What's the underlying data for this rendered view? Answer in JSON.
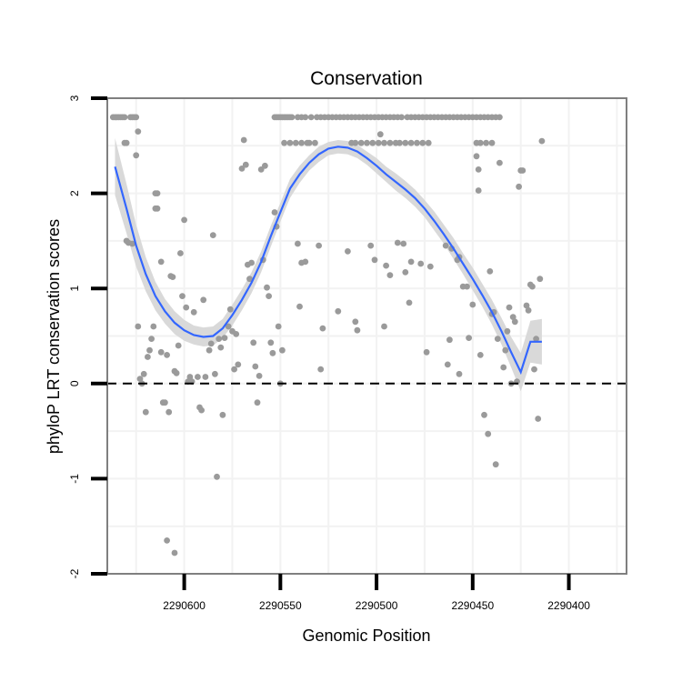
{
  "chart_data": {
    "type": "scatter",
    "title": "Conservation",
    "xlabel": "Genomic Position",
    "ylabel": "phyloP LRT conservation scores",
    "x_reversed": true,
    "xlim": [
      2290640,
      2290370
    ],
    "ylim": [
      -2,
      3
    ],
    "x_ticks": [
      2290600,
      2290550,
      2290500,
      2290450,
      2290400
    ],
    "x_tick_labels": [
      "2290600",
      "2290550",
      "2290500",
      "2290450",
      "2290400"
    ],
    "y_ticks": [
      -2,
      -1,
      0,
      1,
      2,
      3
    ],
    "y_tick_labels": [
      "-2",
      "-1",
      "0",
      "1",
      "2",
      "3"
    ],
    "reference_line": {
      "y": 0,
      "style": "dashed"
    },
    "colors": {
      "points": "#9a9a9a",
      "smooth": "#3366ff",
      "ribbon": "#d9d9d9",
      "grid": "#f2f2f2",
      "border": "#7f7f7f"
    },
    "points": [
      [
        2290637,
        2.8
      ],
      [
        2290636,
        2.8
      ],
      [
        2290635,
        2.8
      ],
      [
        2290634,
        2.8
      ],
      [
        2290633,
        2.8
      ],
      [
        2290632,
        2.8
      ],
      [
        2290631,
        2.8
      ],
      [
        2290628,
        2.8
      ],
      [
        2290627,
        2.8
      ],
      [
        2290626,
        2.8
      ],
      [
        2290625,
        2.8
      ],
      [
        2290631,
        2.53
      ],
      [
        2290630,
        2.53
      ],
      [
        2290624,
        2.65
      ],
      [
        2290625,
        2.4
      ],
      [
        2290630,
        1.5
      ],
      [
        2290629,
        1.48
      ],
      [
        2290627,
        1.47
      ],
      [
        2290624,
        0.6
      ],
      [
        2290623,
        0.05
      ],
      [
        2290622,
        0.0
      ],
      [
        2290621,
        0.1
      ],
      [
        2290620,
        -0.3
      ],
      [
        2290619,
        0.28
      ],
      [
        2290618,
        0.35
      ],
      [
        2290617,
        0.47
      ],
      [
        2290616,
        0.6
      ],
      [
        2290615,
        2.0
      ],
      [
        2290614,
        2.0
      ],
      [
        2290615,
        1.84
      ],
      [
        2290614,
        1.84
      ],
      [
        2290612,
        1.28
      ],
      [
        2290612,
        0.33
      ],
      [
        2290611,
        -0.2
      ],
      [
        2290610,
        -0.2
      ],
      [
        2290609,
        0.3
      ],
      [
        2290608,
        -0.3
      ],
      [
        2290607,
        1.13
      ],
      [
        2290606,
        1.12
      ],
      [
        2290605,
        0.13
      ],
      [
        2290604,
        0.11
      ],
      [
        2290609,
        -1.65
      ],
      [
        2290605,
        -1.78
      ],
      [
        2290603,
        0.4
      ],
      [
        2290602,
        1.37
      ],
      [
        2290601,
        0.92
      ],
      [
        2290600,
        1.72
      ],
      [
        2290599,
        0.8
      ],
      [
        2290598,
        0.02
      ],
      [
        2290597,
        0.07
      ],
      [
        2290596,
        0.02
      ],
      [
        2290595,
        0.75
      ],
      [
        2290593,
        0.07
      ],
      [
        2290592,
        -0.25
      ],
      [
        2290591,
        -0.28
      ],
      [
        2290590,
        0.88
      ],
      [
        2290589,
        0.07
      ],
      [
        2290587,
        0.35
      ],
      [
        2290586,
        0.42
      ],
      [
        2290585,
        1.56
      ],
      [
        2290584,
        0.1
      ],
      [
        2290583,
        -0.98
      ],
      [
        2290582,
        0.47
      ],
      [
        2290581,
        0.38
      ],
      [
        2290580,
        -0.33
      ],
      [
        2290579,
        0.48
      ],
      [
        2290577,
        0.6
      ],
      [
        2290576,
        0.78
      ],
      [
        2290575,
        0.55
      ],
      [
        2290574,
        0.15
      ],
      [
        2290573,
        0.52
      ],
      [
        2290572,
        0.2
      ],
      [
        2290570,
        2.26
      ],
      [
        2290569,
        2.56
      ],
      [
        2290568,
        2.3
      ],
      [
        2290567,
        1.25
      ],
      [
        2290566,
        1.1
      ],
      [
        2290565,
        1.27
      ],
      [
        2290564,
        0.43
      ],
      [
        2290563,
        0.18
      ],
      [
        2290562,
        -0.2
      ],
      [
        2290561,
        0.08
      ],
      [
        2290560,
        2.25
      ],
      [
        2290559,
        1.3
      ],
      [
        2290558,
        2.29
      ],
      [
        2290557,
        1.01
      ],
      [
        2290556,
        0.92
      ],
      [
        2290555,
        0.43
      ],
      [
        2290554,
        0.32
      ],
      [
        2290553,
        1.8
      ],
      [
        2290552,
        1.65
      ],
      [
        2290551,
        0.6
      ],
      [
        2290550,
        0.0
      ],
      [
        2290549,
        0.35
      ],
      [
        2290553,
        2.8
      ],
      [
        2290552,
        2.8
      ],
      [
        2290551,
        2.8
      ],
      [
        2290550,
        2.8
      ],
      [
        2290549,
        2.8
      ],
      [
        2290548,
        2.8
      ],
      [
        2290547,
        2.8
      ],
      [
        2290546,
        2.8
      ],
      [
        2290545,
        2.8
      ],
      [
        2290544,
        2.8
      ],
      [
        2290548,
        2.53
      ],
      [
        2290545,
        2.53
      ],
      [
        2290542,
        2.53
      ],
      [
        2290539,
        2.53
      ],
      [
        2290536,
        2.53
      ],
      [
        2290535,
        2.53
      ],
      [
        2290532,
        2.53
      ],
      [
        2290541,
        2.8
      ],
      [
        2290539,
        2.8
      ],
      [
        2290537,
        2.8
      ],
      [
        2290534,
        2.8
      ],
      [
        2290531,
        2.8
      ],
      [
        2290529,
        2.8
      ],
      [
        2290527,
        2.8
      ],
      [
        2290525,
        2.8
      ],
      [
        2290523,
        2.8
      ],
      [
        2290521,
        2.8
      ],
      [
        2290519,
        2.8
      ],
      [
        2290517,
        2.8
      ],
      [
        2290515,
        2.8
      ],
      [
        2290513,
        2.8
      ],
      [
        2290511,
        2.8
      ],
      [
        2290509,
        2.8
      ],
      [
        2290507,
        2.8
      ],
      [
        2290505,
        2.8
      ],
      [
        2290503,
        2.8
      ],
      [
        2290501,
        2.8
      ],
      [
        2290499,
        2.8
      ],
      [
        2290497,
        2.8
      ],
      [
        2290495,
        2.8
      ],
      [
        2290493,
        2.8
      ],
      [
        2290491,
        2.8
      ],
      [
        2290489,
        2.8
      ],
      [
        2290487,
        2.8
      ],
      [
        2290484,
        2.8
      ],
      [
        2290482,
        2.8
      ],
      [
        2290480,
        2.8
      ],
      [
        2290478,
        2.8
      ],
      [
        2290476,
        2.8
      ],
      [
        2290474,
        2.8
      ],
      [
        2290472,
        2.8
      ],
      [
        2290470,
        2.8
      ],
      [
        2290468,
        2.8
      ],
      [
        2290466,
        2.8
      ],
      [
        2290464,
        2.8
      ],
      [
        2290462,
        2.8
      ],
      [
        2290460,
        2.8
      ],
      [
        2290458,
        2.8
      ],
      [
        2290456,
        2.8
      ],
      [
        2290454,
        2.8
      ],
      [
        2290452,
        2.8
      ],
      [
        2290450,
        2.8
      ],
      [
        2290448,
        2.8
      ],
      [
        2290446,
        2.8
      ],
      [
        2290444,
        2.8
      ],
      [
        2290442,
        2.8
      ],
      [
        2290440,
        2.8
      ],
      [
        2290438,
        2.8
      ],
      [
        2290436,
        2.8
      ],
      [
        2290513,
        2.53
      ],
      [
        2290511,
        2.53
      ],
      [
        2290508,
        2.53
      ],
      [
        2290505,
        2.53
      ],
      [
        2290502,
        2.53
      ],
      [
        2290499,
        2.53
      ],
      [
        2290496,
        2.53
      ],
      [
        2290493,
        2.53
      ],
      [
        2290490,
        2.53
      ],
      [
        2290488,
        2.53
      ],
      [
        2290485,
        2.53
      ],
      [
        2290482,
        2.53
      ],
      [
        2290479,
        2.53
      ],
      [
        2290476,
        2.53
      ],
      [
        2290473,
        2.53
      ],
      [
        2290448,
        2.53
      ],
      [
        2290446,
        2.53
      ],
      [
        2290443,
        2.53
      ],
      [
        2290440,
        2.53
      ],
      [
        2290541,
        1.47
      ],
      [
        2290539,
        1.27
      ],
      [
        2290537,
        1.28
      ],
      [
        2290540,
        0.81
      ],
      [
        2290528,
        0.58
      ],
      [
        2290530,
        1.45
      ],
      [
        2290529,
        0.15
      ],
      [
        2290520,
        0.76
      ],
      [
        2290515,
        1.39
      ],
      [
        2290511,
        0.65
      ],
      [
        2290510,
        0.56
      ],
      [
        2290503,
        1.45
      ],
      [
        2290501,
        1.3
      ],
      [
        2290498,
        2.62
      ],
      [
        2290496,
        0.6
      ],
      [
        2290495,
        1.24
      ],
      [
        2290493,
        1.14
      ],
      [
        2290489,
        1.48
      ],
      [
        2290486,
        1.47
      ],
      [
        2290485,
        1.17
      ],
      [
        2290483,
        0.85
      ],
      [
        2290482,
        1.28
      ],
      [
        2290477,
        1.26
      ],
      [
        2290474,
        0.33
      ],
      [
        2290472,
        1.23
      ],
      [
        2290464,
        1.45
      ],
      [
        2290463,
        0.2
      ],
      [
        2290462,
        0.46
      ],
      [
        2290461,
        1.42
      ],
      [
        2290458,
        1.3
      ],
      [
        2290457,
        0.1
      ],
      [
        2290457,
        1.33
      ],
      [
        2290455,
        1.02
      ],
      [
        2290453,
        1.02
      ],
      [
        2290452,
        0.48
      ],
      [
        2290450,
        0.83
      ],
      [
        2290448,
        2.39
      ],
      [
        2290447,
        2.25
      ],
      [
        2290447,
        2.03
      ],
      [
        2290446,
        0.3
      ],
      [
        2290444,
        -0.33
      ],
      [
        2290442,
        -0.53
      ],
      [
        2290441,
        1.18
      ],
      [
        2290440,
        0.73
      ],
      [
        2290439,
        0.75
      ],
      [
        2290438,
        -0.85
      ],
      [
        2290437,
        0.47
      ],
      [
        2290436,
        2.32
      ],
      [
        2290434,
        0.17
      ],
      [
        2290433,
        0.35
      ],
      [
        2290432,
        0.55
      ],
      [
        2290431,
        0.8
      ],
      [
        2290430,
        0.0
      ],
      [
        2290429,
        0.7
      ],
      [
        2290428,
        0.65
      ],
      [
        2290427,
        0.02
      ],
      [
        2290426,
        2.07
      ],
      [
        2290425,
        2.24
      ],
      [
        2290424,
        2.24
      ],
      [
        2290422,
        0.82
      ],
      [
        2290421,
        0.77
      ],
      [
        2290420,
        1.04
      ],
      [
        2290419,
        1.02
      ],
      [
        2290418,
        0.15
      ],
      [
        2290417,
        0.47
      ],
      [
        2290416,
        -0.37
      ],
      [
        2290415,
        1.1
      ],
      [
        2290414,
        2.55
      ]
    ],
    "smooth": [
      [
        2290636,
        2.28
      ],
      [
        2290630,
        1.84
      ],
      [
        2290625,
        1.45
      ],
      [
        2290620,
        1.15
      ],
      [
        2290615,
        0.92
      ],
      [
        2290610,
        0.76
      ],
      [
        2290605,
        0.64
      ],
      [
        2290600,
        0.56
      ],
      [
        2290595,
        0.51
      ],
      [
        2290590,
        0.49
      ],
      [
        2290585,
        0.5
      ],
      [
        2290580,
        0.58
      ],
      [
        2290575,
        0.72
      ],
      [
        2290570,
        0.88
      ],
      [
        2290565,
        1.06
      ],
      [
        2290560,
        1.28
      ],
      [
        2290555,
        1.55
      ],
      [
        2290550,
        1.8
      ],
      [
        2290545,
        2.05
      ],
      [
        2290540,
        2.2
      ],
      [
        2290535,
        2.32
      ],
      [
        2290530,
        2.41
      ],
      [
        2290525,
        2.47
      ],
      [
        2290520,
        2.49
      ],
      [
        2290515,
        2.48
      ],
      [
        2290510,
        2.44
      ],
      [
        2290505,
        2.37
      ],
      [
        2290500,
        2.29
      ],
      [
        2290495,
        2.2
      ],
      [
        2290490,
        2.12
      ],
      [
        2290485,
        2.04
      ],
      [
        2290480,
        1.95
      ],
      [
        2290475,
        1.84
      ],
      [
        2290470,
        1.71
      ],
      [
        2290465,
        1.57
      ],
      [
        2290460,
        1.42
      ],
      [
        2290455,
        1.26
      ],
      [
        2290450,
        1.1
      ],
      [
        2290445,
        0.93
      ],
      [
        2290440,
        0.75
      ],
      [
        2290435,
        0.55
      ],
      [
        2290430,
        0.33
      ],
      [
        2290425,
        0.12
      ],
      [
        2290420,
        0.44
      ],
      [
        2290414,
        0.44
      ]
    ],
    "ribbon_halfwidth": [
      0.3,
      0.26,
      0.22,
      0.18,
      0.15,
      0.13,
      0.12,
      0.11,
      0.1,
      0.1,
      0.1,
      0.1,
      0.11,
      0.11,
      0.11,
      0.11,
      0.11,
      0.1,
      0.1,
      0.09,
      0.08,
      0.08,
      0.07,
      0.07,
      0.07,
      0.07,
      0.07,
      0.08,
      0.08,
      0.09,
      0.09,
      0.09,
      0.09,
      0.1,
      0.1,
      0.11,
      0.11,
      0.12,
      0.12,
      0.13,
      0.14,
      0.16,
      0.2,
      0.22,
      0.24
    ]
  }
}
